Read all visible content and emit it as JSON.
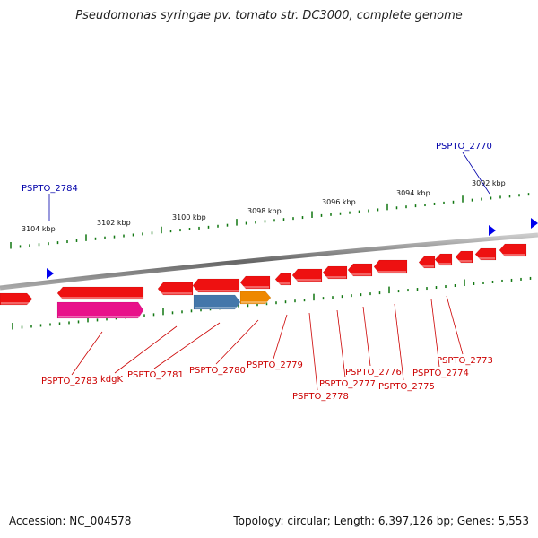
{
  "title": "Pseudomonas syringae pv. tomato str. DC3000, complete genome",
  "footer": {
    "accession": "Accession: NC_004578",
    "stats": "Topology: circular; Length: 6,397,126 bp; Genes: 5,553"
  },
  "colors": {
    "gene_red": "#ee1111",
    "gene_magenta": "#e8118a",
    "gene_blue": "#4477aa",
    "gene_orange": "#ee8800",
    "tick_green": "#117711",
    "label_red": "#cc0000",
    "label_blue": "#0000aa",
    "backbone": "#777777",
    "marker_blue": "#0000ee"
  },
  "scale": {
    "ticks": [
      "3104 kbp",
      "3102 kbp",
      "3100 kbp",
      "3098 kbp",
      "3096 kbp",
      "3094 kbp",
      "3092 kbp"
    ]
  },
  "top_labels": [
    "PSPTO_2784",
    "PSPTO_2770"
  ],
  "bottom_labels": [
    "PSPTO_2783",
    "kdgK",
    "PSPTO_2781",
    "PSPTO_2780",
    "PSPTO_2779",
    "PSPTO_2778",
    "PSPTO_2777",
    "PSPTO_2776",
    "PSPTO_2775",
    "PSPTO_2774",
    "PSPTO_2773"
  ]
}
